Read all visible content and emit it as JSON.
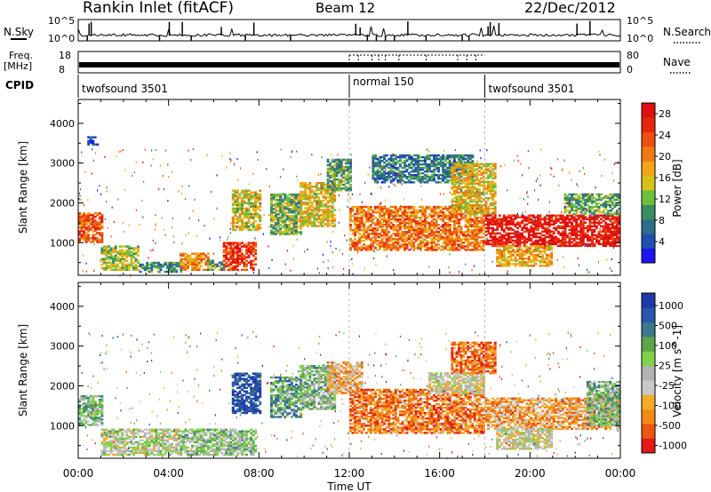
{
  "header": {
    "title": "Rankin Inlet (fitACF)",
    "beam": "Beam 12",
    "date": "22/Dec/2012"
  },
  "status_panels": {
    "nsky_label": "N.Sky",
    "nsky_ticks": [
      "10^5",
      "10^0"
    ],
    "nsearch_label": "N.Search",
    "nsearch_ticks": [
      "10^5",
      "10^0"
    ],
    "freq_label": "Freq.",
    "freq_unit": "[MHz]",
    "freq_ticks": [
      "18",
      "8"
    ],
    "nave_label": "Nave",
    "nave_ticks": [
      "80",
      "0"
    ],
    "cpid_label": "CPID",
    "cpid_segments": [
      {
        "label": "twofsound 3501",
        "start_hour": 0,
        "end_hour": 12
      },
      {
        "label": "normal 150",
        "start_hour": 12,
        "end_hour": 18
      },
      {
        "label": "twofsound 3501",
        "start_hour": 18,
        "end_hour": 24
      }
    ]
  },
  "colors": {
    "power_scale": [
      "#1a14f0",
      "#1f4fb0",
      "#2e6e8a",
      "#3a8e60",
      "#6dbf3e",
      "#d8c21a",
      "#f2a516",
      "#f07a12",
      "#ee4f10",
      "#e8260e",
      "#e01010"
    ],
    "velocity_scale": [
      "#e41818",
      "#ed5412",
      "#f28a14",
      "#f4aa2a",
      "#c8c8c8",
      "#b2b2b2",
      "#7fd24a",
      "#5aa64a",
      "#3a7a8c",
      "#2a56ac",
      "#1e3aa8"
    ]
  },
  "chart_data": [
    {
      "type": "heatmap",
      "panel": "power",
      "title": "Rankin Inlet (fitACF)",
      "xlabel": "Time UT",
      "ylabel": "Slant Range [km]",
      "xlim": [
        0,
        24
      ],
      "ylim": [
        180,
        4600
      ],
      "x_ticks": [
        "00:00",
        "04:00",
        "08:00",
        "12:00",
        "16:00",
        "20:00",
        "00:00"
      ],
      "y_ticks": [
        "1000",
        "2000",
        "3000",
        "4000"
      ],
      "colorbar": {
        "label": "Power [dB]",
        "ticks": [
          "4",
          "8",
          "12",
          "16",
          "20",
          "24",
          "28"
        ],
        "range": [
          0,
          30
        ]
      },
      "regions": [
        {
          "t0": 0.0,
          "t1": 1.0,
          "r0": 1000,
          "r1": 1750,
          "level": 0.75
        },
        {
          "t0": 0.4,
          "t1": 0.8,
          "r0": 3450,
          "r1": 3650,
          "level": 0.15
        },
        {
          "t0": 1.0,
          "t1": 2.7,
          "r0": 300,
          "r1": 900,
          "level": 0.45
        },
        {
          "t0": 2.7,
          "t1": 4.5,
          "r0": 250,
          "r1": 500,
          "level": 0.3
        },
        {
          "t0": 4.5,
          "t1": 5.7,
          "r0": 300,
          "r1": 750,
          "level": 0.65
        },
        {
          "t0": 5.7,
          "t1": 6.4,
          "r0": 300,
          "r1": 550,
          "level": 0.35
        },
        {
          "t0": 6.4,
          "t1": 7.8,
          "r0": 300,
          "r1": 1000,
          "level": 0.85
        },
        {
          "t0": 6.8,
          "t1": 8.0,
          "r0": 1300,
          "r1": 2300,
          "level": 0.5
        },
        {
          "t0": 8.5,
          "t1": 9.8,
          "r0": 1200,
          "r1": 2200,
          "level": 0.4
        },
        {
          "t0": 9.8,
          "t1": 11.3,
          "r0": 1400,
          "r1": 2500,
          "level": 0.55
        },
        {
          "t0": 11.0,
          "t1": 12.0,
          "r0": 2300,
          "r1": 3100,
          "level": 0.35
        },
        {
          "t0": 12.0,
          "t1": 18.0,
          "r0": 800,
          "r1": 1900,
          "level": 0.7
        },
        {
          "t0": 13.0,
          "t1": 17.5,
          "r0": 2500,
          "r1": 3200,
          "level": 0.25
        },
        {
          "t0": 16.5,
          "t1": 18.5,
          "r0": 1700,
          "r1": 3000,
          "level": 0.55
        },
        {
          "t0": 18.0,
          "t1": 24.0,
          "r0": 900,
          "r1": 1700,
          "level": 0.95
        },
        {
          "t0": 18.5,
          "t1": 21.0,
          "r0": 400,
          "r1": 900,
          "level": 0.6
        },
        {
          "t0": 21.5,
          "t1": 24.0,
          "r0": 1700,
          "r1": 2200,
          "level": 0.35
        }
      ]
    },
    {
      "type": "heatmap",
      "panel": "velocity",
      "xlabel": "Time UT",
      "ylabel": "Slant Range [km]",
      "xlim": [
        0,
        24
      ],
      "ylim": [
        180,
        4600
      ],
      "x_ticks": [
        "00:00",
        "04:00",
        "08:00",
        "12:00",
        "16:00",
        "20:00",
        "00:00"
      ],
      "y_ticks": [
        "1000",
        "2000",
        "3000",
        "4000"
      ],
      "colorbar": {
        "label": "Velocity [m s^-1]",
        "ticks": [
          "1000",
          "500",
          "100",
          "25",
          "-25",
          "-100",
          "-500",
          "-1000"
        ],
        "range": [
          -1000,
          1000
        ]
      },
      "regions": [
        {
          "t0": 0.0,
          "t1": 1.0,
          "r0": 1000,
          "r1": 1750,
          "level": 0.62
        },
        {
          "t0": 1.0,
          "t1": 4.5,
          "r0": 250,
          "r1": 900,
          "level": 0.5
        },
        {
          "t0": 4.5,
          "t1": 7.8,
          "r0": 250,
          "r1": 900,
          "level": 0.58
        },
        {
          "t0": 6.8,
          "t1": 8.0,
          "r0": 1300,
          "r1": 2300,
          "level": 0.9
        },
        {
          "t0": 8.5,
          "t1": 9.8,
          "r0": 1200,
          "r1": 2200,
          "level": 0.7
        },
        {
          "t0": 9.8,
          "t1": 11.3,
          "r0": 1400,
          "r1": 2500,
          "level": 0.6
        },
        {
          "t0": 11.0,
          "t1": 12.5,
          "r0": 1800,
          "r1": 2600,
          "level": 0.32
        },
        {
          "t0": 12.0,
          "t1": 18.0,
          "r0": 800,
          "r1": 1900,
          "level": 0.2
        },
        {
          "t0": 15.5,
          "t1": 18.0,
          "r0": 1800,
          "r1": 2300,
          "level": 0.45
        },
        {
          "t0": 16.5,
          "t1": 18.5,
          "r0": 2300,
          "r1": 3100,
          "level": 0.2
        },
        {
          "t0": 18.0,
          "t1": 24.0,
          "r0": 900,
          "r1": 1700,
          "level": 0.28
        },
        {
          "t0": 18.5,
          "t1": 21.0,
          "r0": 400,
          "r1": 900,
          "level": 0.45
        },
        {
          "t0": 22.5,
          "t1": 24.0,
          "r0": 1000,
          "r1": 2100,
          "level": 0.62
        }
      ]
    }
  ]
}
